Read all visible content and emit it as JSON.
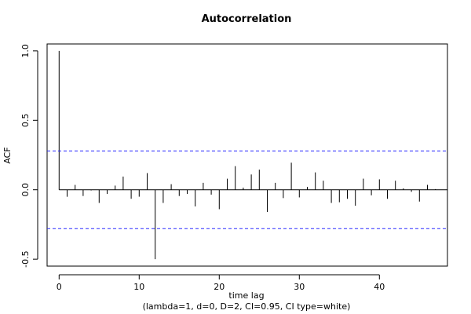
{
  "chart_data": {
    "type": "bar",
    "title": "Autocorrelation",
    "xlabel": "time lag",
    "subtitle": "(lambda=1, d=0, D=2, CI=0.95, CI type=white)",
    "ylabel": "ACF",
    "xlim": [
      -1.5,
      48.5
    ],
    "ylim": [
      -0.55,
      1.05
    ],
    "xticks": [
      0,
      10,
      20,
      30,
      40
    ],
    "yticks": [
      -0.5,
      0.0,
      0.5,
      1.0
    ],
    "ytick_labels": [
      "-0.5",
      "0.0",
      "0.5",
      "1.0"
    ],
    "confidence_interval": 0.28,
    "grid": false,
    "legend": "none",
    "colors": {
      "spike": "#000000",
      "ci": "#2b2bff"
    },
    "x": [
      0,
      1,
      2,
      3,
      4,
      5,
      6,
      7,
      8,
      9,
      10,
      11,
      12,
      13,
      14,
      15,
      16,
      17,
      18,
      19,
      20,
      21,
      22,
      23,
      24,
      25,
      26,
      27,
      28,
      29,
      30,
      31,
      32,
      33,
      34,
      35,
      36,
      37,
      38,
      39,
      40,
      41,
      42,
      43,
      44,
      45,
      46,
      47
    ],
    "values": [
      1.0,
      -0.05,
      0.035,
      -0.045,
      -0.005,
      -0.095,
      -0.03,
      0.03,
      0.095,
      -0.065,
      -0.05,
      0.12,
      -0.5,
      -0.095,
      0.04,
      -0.045,
      -0.03,
      -0.12,
      0.05,
      -0.035,
      -0.14,
      0.08,
      0.17,
      0.015,
      0.11,
      0.145,
      -0.16,
      0.05,
      -0.06,
      0.195,
      -0.055,
      0.02,
      0.125,
      0.065,
      -0.095,
      -0.09,
      -0.065,
      -0.115,
      0.08,
      -0.04,
      0.075,
      -0.065,
      0.065,
      0.01,
      -0.015,
      -0.085,
      0.035,
      0.005
    ]
  }
}
